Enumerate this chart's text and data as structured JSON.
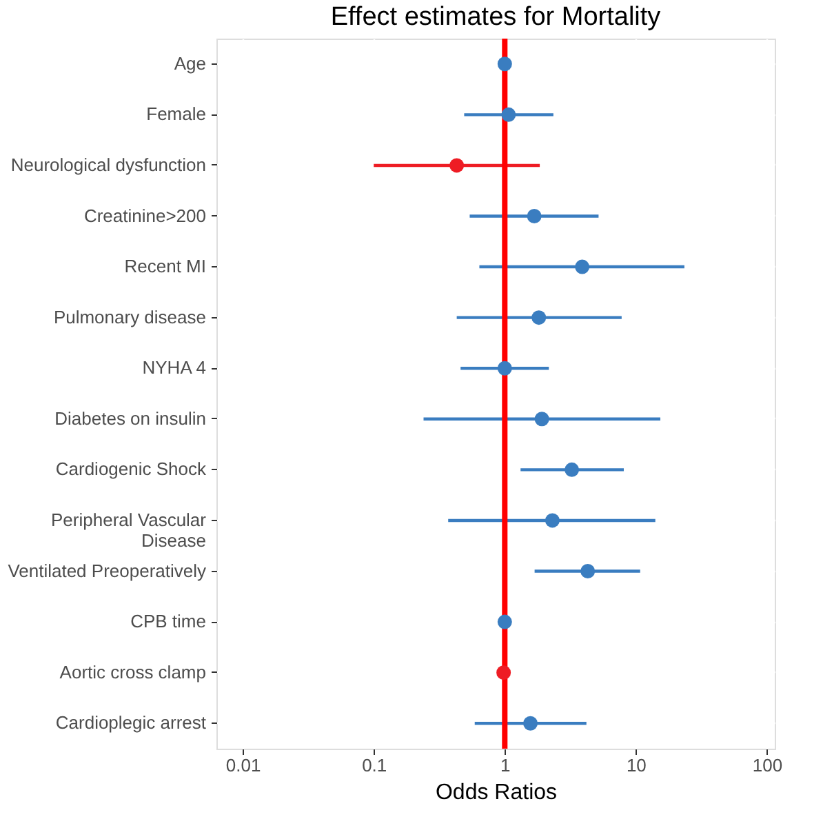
{
  "chart_data": {
    "type": "scatter",
    "orientation": "horizontal",
    "title": "Effect estimates for Mortality",
    "xlabel": "Odds Ratios",
    "categories": [
      "Age",
      "Female",
      "Neurological dysfunction",
      "Creatinine>200",
      "Recent MI",
      "Pulmonary disease",
      "NYHA 4",
      "Diabetes on insulin",
      "Cardiogenic Shock",
      "Peripheral Vascular\nDisease",
      "Ventilated Preoperatively",
      "CPB time",
      "Aortic cross clamp",
      "Cardioplegic arrest"
    ],
    "values": [
      1.0,
      1.07,
      0.43,
      1.68,
      3.9,
      1.82,
      1.0,
      1.92,
      3.25,
      2.31,
      4.3,
      1.0,
      0.98,
      1.57
    ],
    "errors": [
      null,
      [
        0.49,
        2.35
      ],
      [
        0.1,
        1.85
      ],
      [
        0.54,
        5.2
      ],
      [
        0.64,
        23.5
      ],
      [
        0.43,
        7.8
      ],
      [
        0.46,
        2.17
      ],
      [
        0.24,
        15.4
      ],
      [
        1.32,
        8.1
      ],
      [
        0.37,
        14.1
      ],
      [
        1.69,
        10.8
      ],
      null,
      null,
      [
        0.59,
        4.2
      ]
    ],
    "colors": [
      "#3a7dc0",
      "#3a7dc0",
      "#ee1c24",
      "#3a7dc0",
      "#3a7dc0",
      "#3a7dc0",
      "#3a7dc0",
      "#3a7dc0",
      "#3a7dc0",
      "#3a7dc0",
      "#3a7dc0",
      "#3a7dc0",
      "#ee1c24",
      "#3a7dc0"
    ],
    "marker": "circle",
    "log": "x",
    "xlim": [
      0.0063,
      115
    ],
    "xticks": [
      0.01,
      0.1,
      1,
      10,
      100
    ],
    "grid": true,
    "ref_lines": [
      {
        "axis": "x",
        "value": 1,
        "color": "#ff0000"
      }
    ]
  }
}
